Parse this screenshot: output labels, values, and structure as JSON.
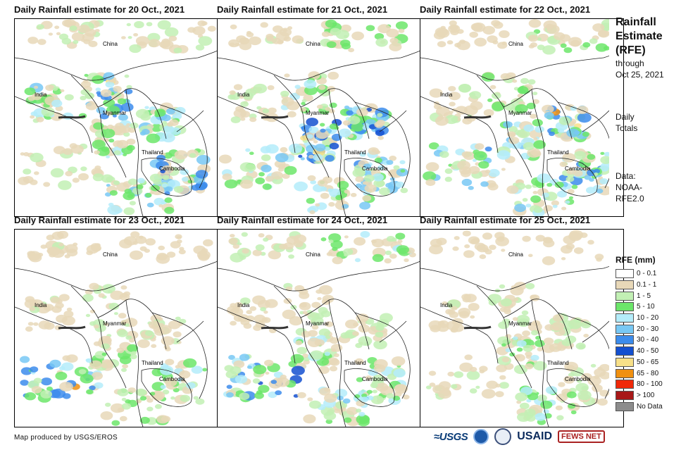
{
  "panels": [
    {
      "title": "Daily Rainfall estimate for 20 Oct., 2021"
    },
    {
      "title": "Daily Rainfall estimate for 21 Oct., 2021"
    },
    {
      "title": "Daily Rainfall estimate for 22 Oct., 2021"
    },
    {
      "title": "Daily Rainfall estimate for 23 Oct., 2021"
    },
    {
      "title": "Daily Rainfall estimate for 24 Oct., 2021"
    },
    {
      "title": "Daily Rainfall estimate for 25 Oct., 2021"
    }
  ],
  "map_labels": {
    "china": "China",
    "india": "India",
    "myanmar": "Myanmar",
    "thailand": "Thailand",
    "cambodia": "Cambodia"
  },
  "sidebar": {
    "title_lines": [
      "Rainfall",
      "Estimate",
      "(RFE)"
    ],
    "through_lines": [
      "through",
      "Oct 25, 2021"
    ],
    "daily_lines": [
      "Daily",
      "Totals"
    ],
    "data_lines": [
      "Data:",
      "NOAA-",
      "RFE2.0"
    ]
  },
  "legend": {
    "title": "RFE (mm)",
    "items": [
      {
        "label": "0 - 0.1",
        "color": "#ffffff"
      },
      {
        "label": "0.1 - 1",
        "color": "#e8d8b8"
      },
      {
        "label": "1 - 5",
        "color": "#c2f0b4"
      },
      {
        "label": "5 - 10",
        "color": "#6ce66a"
      },
      {
        "label": "10 - 20",
        "color": "#b4ecfa"
      },
      {
        "label": "20 - 30",
        "color": "#78c8f4"
      },
      {
        "label": "30 - 40",
        "color": "#3c8cec"
      },
      {
        "label": "40 - 50",
        "color": "#1450d0"
      },
      {
        "label": "50 - 65",
        "color": "#f8e088"
      },
      {
        "label": "65 - 80",
        "color": "#f09010"
      },
      {
        "label": "80 - 100",
        "color": "#f02808"
      },
      {
        "label": "> 100",
        "color": "#a81818"
      },
      {
        "label": "No Data",
        "color": "#8c8c8c"
      }
    ]
  },
  "credit": "Map produced by USGS/EROS",
  "logos": {
    "usgs": "≈USGS",
    "usaid": "USAID",
    "fews": "FEWS NET"
  }
}
